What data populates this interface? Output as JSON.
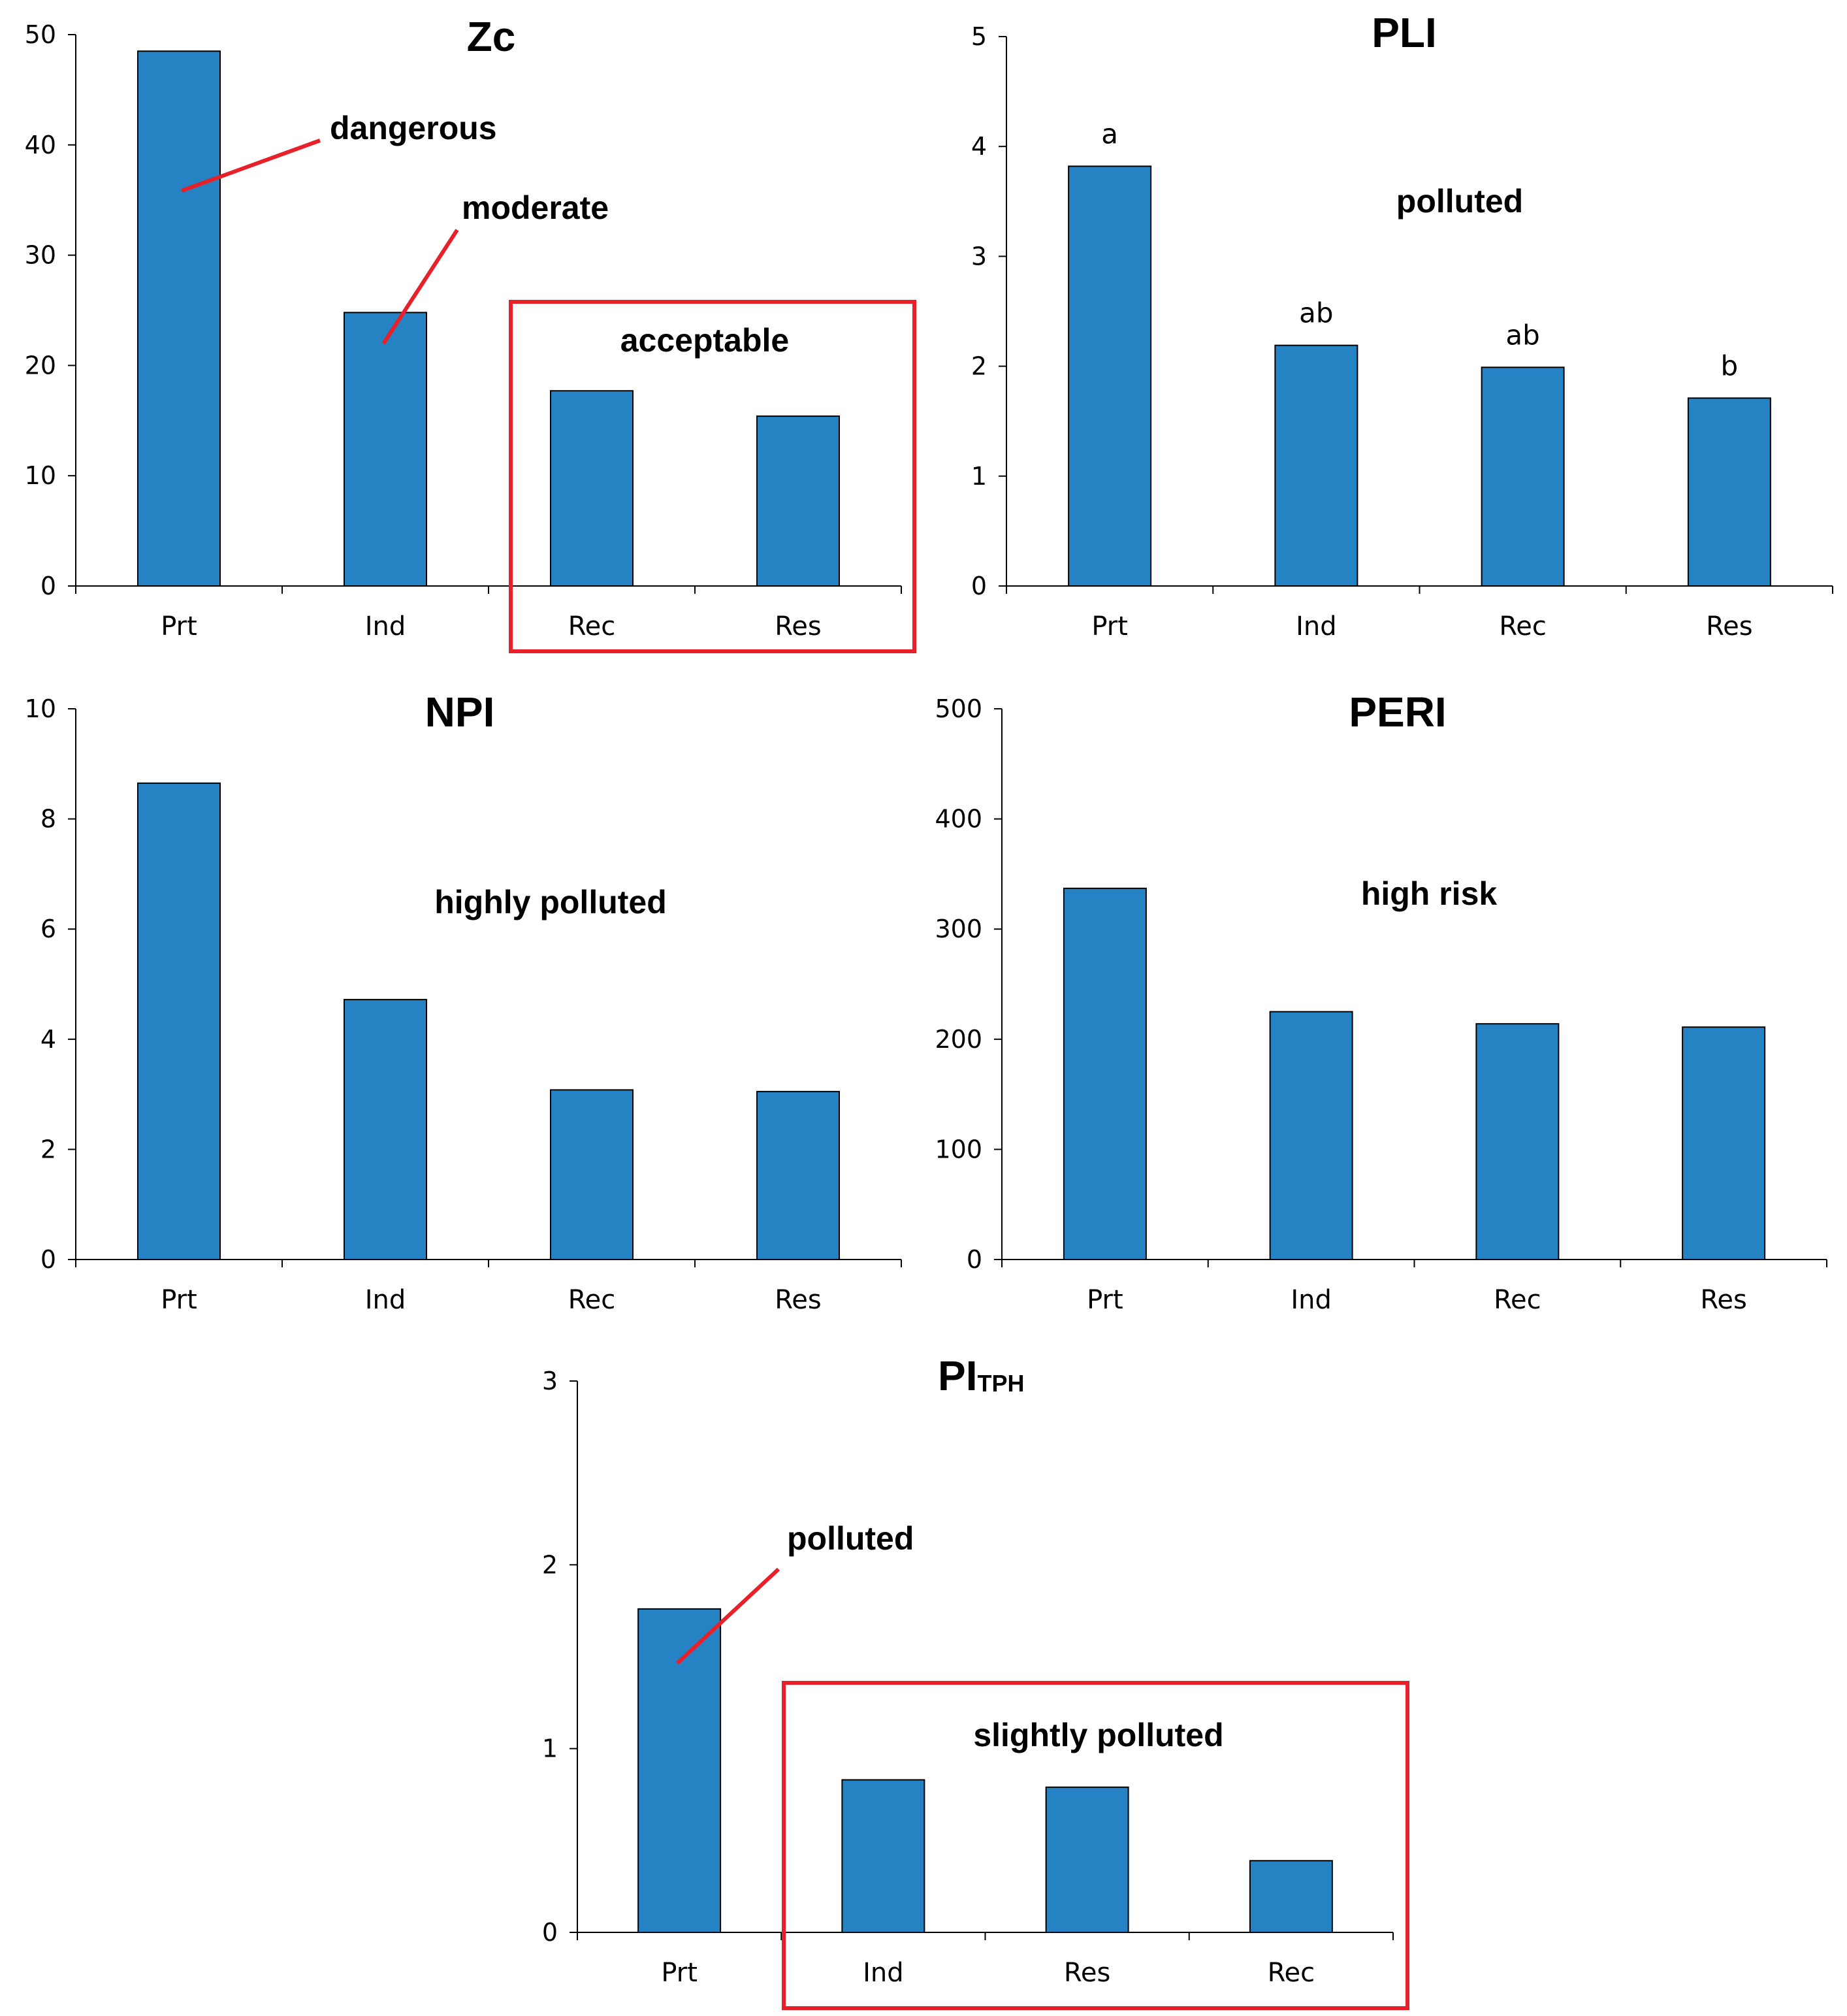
{
  "chart_data": [
    {
      "type": "bar",
      "title": "Zc",
      "categories": [
        "Prt",
        "Ind",
        "Rec",
        "Res"
      ],
      "values": [
        48.5,
        24.8,
        17.7,
        15.4
      ],
      "ylim": [
        0,
        50
      ],
      "yticks": [
        0,
        10,
        20,
        30,
        40,
        50
      ],
      "bar_color": "#2583C3",
      "annotations": [
        {
          "text": "dangerous",
          "target": "Prt",
          "leader_line": true
        },
        {
          "text": "moderate",
          "target": "Ind",
          "leader_line": true
        },
        {
          "text": "acceptable",
          "boxed_categories": [
            "Rec",
            "Res"
          ]
        }
      ]
    },
    {
      "type": "bar",
      "title": "PLI",
      "categories": [
        "Prt",
        "Ind",
        "Rec",
        "Res"
      ],
      "values": [
        3.82,
        2.19,
        1.99,
        1.71
      ],
      "ylim": [
        0,
        5
      ],
      "yticks": [
        0,
        1,
        2,
        3,
        4,
        5
      ],
      "bar_color": "#2583C3",
      "letters": [
        "a",
        "ab",
        "ab",
        "b"
      ],
      "annotations": [
        {
          "text": "polluted"
        }
      ]
    },
    {
      "type": "bar",
      "title": "NPI",
      "categories": [
        "Prt",
        "Ind",
        "Rec",
        "Res"
      ],
      "values": [
        8.65,
        4.72,
        3.08,
        3.05
      ],
      "ylim": [
        0,
        10
      ],
      "yticks": [
        0,
        2,
        4,
        6,
        8,
        10
      ],
      "bar_color": "#2583C3",
      "annotations": [
        {
          "text": "highly polluted"
        }
      ]
    },
    {
      "type": "bar",
      "title": "PERI",
      "categories": [
        "Prt",
        "Ind",
        "Rec",
        "Res"
      ],
      "values": [
        337,
        225,
        214,
        211
      ],
      "ylim": [
        0,
        500
      ],
      "yticks": [
        0,
        100,
        200,
        300,
        400,
        500
      ],
      "bar_color": "#2583C3",
      "annotations": [
        {
          "text": "high risk"
        }
      ]
    },
    {
      "type": "bar",
      "title": "PI",
      "title_subscript": "TPH",
      "categories": [
        "Prt",
        "Ind",
        "Res",
        "Rec"
      ],
      "values": [
        1.76,
        0.83,
        0.79,
        0.39
      ],
      "ylim": [
        0,
        3
      ],
      "yticks": [
        0,
        1,
        2,
        3
      ],
      "bar_color": "#2583C3",
      "annotations": [
        {
          "text": "polluted",
          "target": "Prt",
          "leader_line": true
        },
        {
          "text": "slightly polluted",
          "boxed_categories": [
            "Ind",
            "Res",
            "Rec"
          ]
        }
      ]
    }
  ],
  "colors": {
    "bar": "#2583C3",
    "bar_outline": "#000000",
    "highlight": "#E8202A",
    "axis": "#000000"
  }
}
